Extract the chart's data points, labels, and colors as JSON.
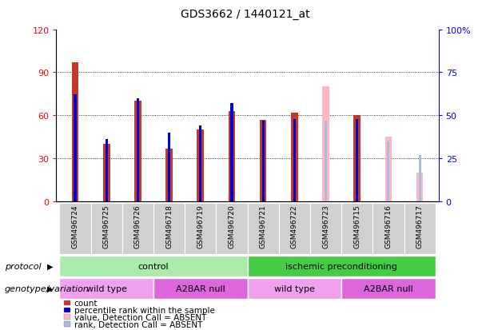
{
  "title": "GDS3662 / 1440121_at",
  "samples": [
    "GSM496724",
    "GSM496725",
    "GSM496726",
    "GSM496718",
    "GSM496719",
    "GSM496720",
    "GSM496721",
    "GSM496722",
    "GSM496723",
    "GSM496715",
    "GSM496716",
    "GSM496717"
  ],
  "count_values": [
    97,
    40,
    70,
    37,
    50,
    63,
    57,
    62,
    80,
    60,
    45,
    20
  ],
  "rank_values": [
    62,
    36,
    60,
    40,
    44,
    57,
    47,
    48,
    47,
    48,
    35,
    27
  ],
  "absent": [
    false,
    false,
    false,
    false,
    false,
    false,
    false,
    false,
    true,
    false,
    true,
    true
  ],
  "protocol_groups": [
    {
      "label": "control",
      "start": 0,
      "end": 6,
      "color": "#AAEAAA"
    },
    {
      "label": "ischemic preconditioning",
      "start": 6,
      "end": 12,
      "color": "#44CC44"
    }
  ],
  "genotype_groups": [
    {
      "label": "wild type",
      "start": 0,
      "end": 3,
      "color": "#F0A0F0"
    },
    {
      "label": "A2BAR null",
      "start": 3,
      "end": 6,
      "color": "#DD66DD"
    },
    {
      "label": "wild type",
      "start": 6,
      "end": 9,
      "color": "#F0A0F0"
    },
    {
      "label": "A2BAR null",
      "start": 9,
      "end": 12,
      "color": "#DD66DD"
    }
  ],
  "color_present_count": "#C0392B",
  "color_absent_count": "#FFB6C1",
  "color_present_rank": "#0000CC",
  "color_absent_rank": "#AABBDD",
  "ylim_left": [
    0,
    120
  ],
  "ylim_right": [
    0,
    100
  ],
  "yticks_left": [
    0,
    30,
    60,
    90,
    120
  ],
  "yticks_right": [
    0,
    25,
    50,
    75,
    100
  ],
  "ytick_labels_left": [
    "0",
    "30",
    "60",
    "90",
    "120"
  ],
  "ytick_labels_right": [
    "0",
    "25",
    "50",
    "75",
    "100%"
  ],
  "legend_items": [
    {
      "label": "count",
      "color": "#C0392B"
    },
    {
      "label": "percentile rank within the sample",
      "color": "#0000CC"
    },
    {
      "label": "value, Detection Call = ABSENT",
      "color": "#FFB6C1"
    },
    {
      "label": "rank, Detection Call = ABSENT",
      "color": "#AABBDD"
    }
  ],
  "protocol_label": "protocol",
  "genotype_label": "genotype/variation",
  "bg_color": "#FFFFFF"
}
